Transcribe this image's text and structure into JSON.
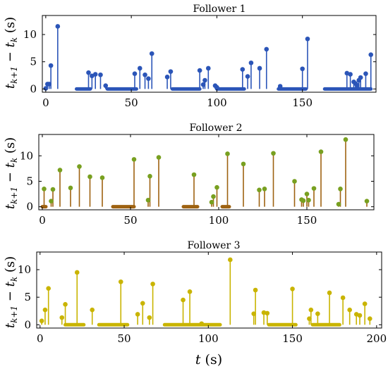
{
  "chart_data": [
    {
      "type": "stem",
      "title": "Follower 1",
      "color": "#2b55b8",
      "ylabel": "t_{k+1} − t_k (s)",
      "xlim": [
        -2,
        193
      ],
      "ylim": [
        -0.6,
        13.5
      ],
      "xticks": [
        "0",
        "50",
        "100",
        "150"
      ],
      "xtick_values": [
        0,
        50,
        100,
        150
      ],
      "yticks": [
        "0",
        "5",
        "10"
      ],
      "ytick_values": [
        0,
        5,
        10
      ],
      "points": [
        [
          0,
          0.1
        ],
        [
          1,
          0.9
        ],
        [
          2,
          0.9
        ],
        [
          3,
          4.3
        ],
        [
          7,
          11.5
        ],
        [
          25,
          3.0
        ],
        [
          27,
          2.4
        ],
        [
          29,
          2.7
        ],
        [
          32,
          2.6
        ],
        [
          35,
          0.6
        ],
        [
          52,
          2.8
        ],
        [
          55,
          3.8
        ],
        [
          58,
          2.6
        ],
        [
          60,
          1.9
        ],
        [
          62,
          6.5
        ],
        [
          71,
          2.2
        ],
        [
          73,
          3.2
        ],
        [
          90,
          3.4
        ],
        [
          92,
          0.8
        ],
        [
          93,
          1.6
        ],
        [
          95,
          3.8
        ],
        [
          99,
          0.6
        ],
        [
          100,
          0.3
        ],
        [
          115,
          3.6
        ],
        [
          118,
          2.3
        ],
        [
          120,
          4.8
        ],
        [
          125,
          3.8
        ],
        [
          129,
          7.3
        ],
        [
          137,
          0.5
        ],
        [
          150,
          3.7
        ],
        [
          153,
          9.2
        ],
        [
          176,
          2.9
        ],
        [
          178,
          2.7
        ],
        [
          180,
          1.3
        ],
        [
          181,
          1.0
        ],
        [
          182,
          0.7
        ],
        [
          183,
          1.6
        ],
        [
          184,
          2.1
        ],
        [
          187,
          2.8
        ],
        [
          190,
          6.3
        ]
      ],
      "flat_segments": [
        [
          18,
          26
        ],
        [
          36,
          53
        ],
        [
          74,
          90
        ],
        [
          100,
          116
        ],
        [
          136,
          152
        ],
        [
          163,
          190
        ]
      ]
    },
    {
      "type": "stem",
      "title": "Follower 2",
      "color": "#9e6211",
      "dot_color": "#78a020",
      "ylabel": "t_{k+1} − t_k (s)",
      "xlim": [
        -2,
        188
      ],
      "ylim": [
        -0.6,
        14.2
      ],
      "xticks": [
        "0",
        "50",
        "100",
        "150"
      ],
      "xtick_values": [
        0,
        50,
        100,
        150
      ],
      "yticks": [
        "0",
        "5",
        "10"
      ],
      "ytick_values": [
        0,
        5,
        10
      ],
      "points": [
        [
          1,
          3.5
        ],
        [
          5,
          1.1
        ],
        [
          6,
          3.4
        ],
        [
          10,
          7.2
        ],
        [
          16,
          3.7
        ],
        [
          21,
          7.9
        ],
        [
          27,
          5.9
        ],
        [
          34,
          5.7
        ],
        [
          52,
          9.3
        ],
        [
          60,
          1.3
        ],
        [
          61,
          6.0
        ],
        [
          66,
          9.7
        ],
        [
          86,
          6.3
        ],
        [
          96,
          0.9
        ],
        [
          97,
          2.0
        ],
        [
          99,
          3.8
        ],
        [
          105,
          10.4
        ],
        [
          114,
          8.4
        ],
        [
          123,
          3.3
        ],
        [
          126,
          3.5
        ],
        [
          131,
          10.5
        ],
        [
          143,
          5.0
        ],
        [
          147,
          1.4
        ],
        [
          148,
          1.2
        ],
        [
          150,
          2.5
        ],
        [
          151,
          1.3
        ],
        [
          154,
          3.6
        ],
        [
          158,
          10.8
        ],
        [
          168,
          0.5
        ],
        [
          169,
          3.5
        ],
        [
          172,
          13.2
        ],
        [
          184,
          1.1
        ]
      ],
      "flat_segments": [
        [
          0,
          2
        ],
        [
          40,
          52
        ],
        [
          80,
          88
        ],
        [
          102,
          106
        ]
      ]
    },
    {
      "type": "stem",
      "title": "Follower 3",
      "color": "#c9b400",
      "ylabel": "t_{k+1} − t_k (s)",
      "xlabel": "t (s)",
      "xlim": [
        -2,
        203
      ],
      "ylim": [
        -0.6,
        13.2
      ],
      "xticks": [
        "0",
        "50",
        "100",
        "150",
        "200"
      ],
      "xtick_values": [
        0,
        50,
        100,
        150,
        200
      ],
      "yticks": [
        "0",
        "5",
        "10"
      ],
      "ytick_values": [
        0,
        5,
        10
      ],
      "points": [
        [
          1,
          0.7
        ],
        [
          3,
          2.7
        ],
        [
          5,
          6.6
        ],
        [
          13,
          1.3
        ],
        [
          15,
          3.7
        ],
        [
          22,
          9.5
        ],
        [
          31,
          2.7
        ],
        [
          48,
          7.8
        ],
        [
          58,
          1.9
        ],
        [
          61,
          3.9
        ],
        [
          65,
          1.3
        ],
        [
          67,
          7.4
        ],
        [
          85,
          4.5
        ],
        [
          89,
          6.0
        ],
        [
          96,
          0.2
        ],
        [
          113,
          11.8
        ],
        [
          127,
          2.0
        ],
        [
          128,
          6.3
        ],
        [
          133,
          2.2
        ],
        [
          135,
          2.1
        ],
        [
          150,
          6.5
        ],
        [
          160,
          1.1
        ],
        [
          161,
          2.7
        ],
        [
          165,
          2.0
        ],
        [
          172,
          5.8
        ],
        [
          180,
          4.9
        ],
        [
          184,
          2.7
        ],
        [
          188,
          1.9
        ],
        [
          190,
          1.7
        ],
        [
          193,
          3.8
        ],
        [
          196,
          1.1
        ]
      ],
      "flat_segments": [
        [
          15,
          26
        ],
        [
          35,
          52
        ],
        [
          74,
          107
        ],
        [
          136,
          152
        ],
        [
          162,
          178
        ]
      ]
    }
  ]
}
